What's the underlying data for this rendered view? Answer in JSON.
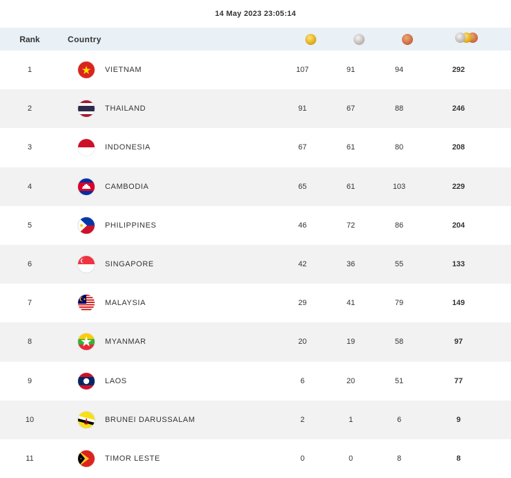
{
  "timestamp": "14 May 2023  23:05:14",
  "header": {
    "rank_label": "Rank",
    "country_label": "Country",
    "gold_icon": "gold-medal-icon",
    "silver_icon": "silver-medal-icon",
    "bronze_icon": "bronze-medal-icon",
    "total_icon": "total-medals-icon"
  },
  "colors": {
    "header_bg": "#e9f0f6",
    "alt_row_bg": "#f2f2f2"
  },
  "rows": [
    {
      "rank": "1",
      "country": "VIETNAM",
      "gold": "107",
      "silver": "91",
      "bronze": "94",
      "total": "292",
      "flag": "vietnam-flag-icon"
    },
    {
      "rank": "2",
      "country": "THAILAND",
      "gold": "91",
      "silver": "67",
      "bronze": "88",
      "total": "246",
      "flag": "thailand-flag-icon"
    },
    {
      "rank": "3",
      "country": "INDONESIA",
      "gold": "67",
      "silver": "61",
      "bronze": "80",
      "total": "208",
      "flag": "indonesia-flag-icon"
    },
    {
      "rank": "4",
      "country": "CAMBODIA",
      "gold": "65",
      "silver": "61",
      "bronze": "103",
      "total": "229",
      "flag": "cambodia-flag-icon"
    },
    {
      "rank": "5",
      "country": "PHILIPPINES",
      "gold": "46",
      "silver": "72",
      "bronze": "86",
      "total": "204",
      "flag": "philippines-flag-icon"
    },
    {
      "rank": "6",
      "country": "SINGAPORE",
      "gold": "42",
      "silver": "36",
      "bronze": "55",
      "total": "133",
      "flag": "singapore-flag-icon"
    },
    {
      "rank": "7",
      "country": "MALAYSIA",
      "gold": "29",
      "silver": "41",
      "bronze": "79",
      "total": "149",
      "flag": "malaysia-flag-icon"
    },
    {
      "rank": "8",
      "country": "MYANMAR",
      "gold": "20",
      "silver": "19",
      "bronze": "58",
      "total": "97",
      "flag": "myanmar-flag-icon"
    },
    {
      "rank": "9",
      "country": "LAOS",
      "gold": "6",
      "silver": "20",
      "bronze": "51",
      "total": "77",
      "flag": "laos-flag-icon"
    },
    {
      "rank": "10",
      "country": "BRUNEI DARUSSALAM",
      "gold": "2",
      "silver": "1",
      "bronze": "6",
      "total": "9",
      "flag": "brunei-flag-icon"
    },
    {
      "rank": "11",
      "country": "TIMOR LESTE",
      "gold": "0",
      "silver": "0",
      "bronze": "8",
      "total": "8",
      "flag": "timor-leste-flag-icon"
    }
  ]
}
